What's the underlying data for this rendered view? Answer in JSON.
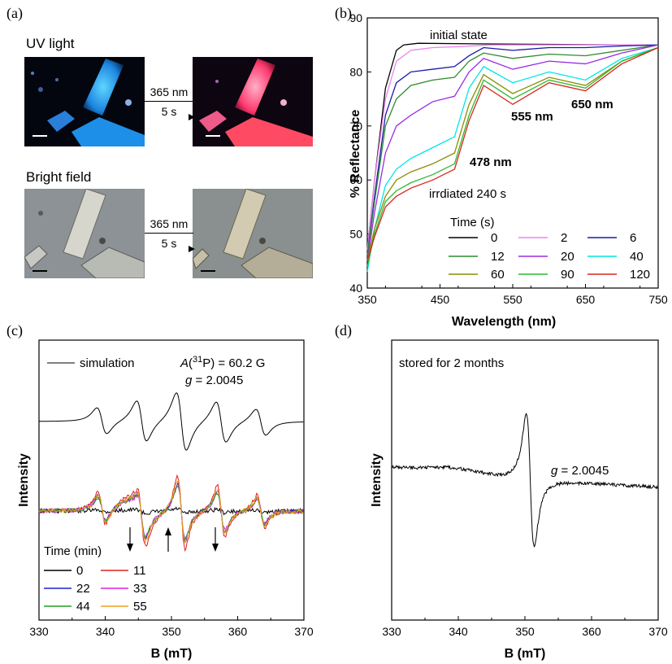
{
  "panel_labels": {
    "a": "(a)",
    "b": "(b)",
    "c": "(c)",
    "d": "(d)"
  },
  "panel_a": {
    "uv_title": "UV light",
    "bright_title": "Bright field",
    "arrow_top_line1": "365 nm",
    "arrow_top_line2": "5 s",
    "arrow_bottom_line1": "365 nm",
    "arrow_bottom_line2": "5 s"
  },
  "colors": {
    "t0": "#000000",
    "t2": "#ee82ee",
    "t6": "#1a1aaa",
    "t12": "#2e8b2e",
    "t20": "#9a2be2",
    "t40": "#00e5e5",
    "t60": "#8b8b00",
    "t90": "#2fb82f",
    "t120": "#d9261c",
    "c0": "#000000",
    "c11": "#e02020",
    "c22": "#2020d0",
    "c33": "#e020e0",
    "c44": "#20a020",
    "c55": "#f0a020"
  },
  "chart_data": [
    {
      "id": "reflectance",
      "type": "line",
      "xlabel": "Wavelength (nm)",
      "ylabel": "% Reflectance",
      "xlim": [
        350,
        750
      ],
      "ylim": [
        40,
        90
      ],
      "xticks": [
        "350",
        "450",
        "550",
        "650",
        "750"
      ],
      "yticks": [
        "40",
        "50",
        "60",
        "70",
        "80",
        "90"
      ],
      "legend_title": "Time (s)",
      "annotations": [
        "initial state",
        "irrdiated 240 s",
        "478 nm",
        "555 nm",
        "650 nm"
      ],
      "series": [
        {
          "name": "0",
          "x": [
            350,
            360,
            375,
            390,
            400,
            420,
            500,
            600,
            700,
            750
          ],
          "y": [
            47,
            60,
            77,
            84,
            85,
            85.3,
            85.2,
            85.1,
            85,
            85
          ]
        },
        {
          "name": "2",
          "x": [
            350,
            360,
            375,
            390,
            410,
            440,
            480,
            520,
            600,
            700,
            750
          ],
          "y": [
            47,
            60,
            75,
            82,
            84,
            84.5,
            84.7,
            85,
            85,
            85,
            85
          ]
        },
        {
          "name": "6",
          "x": [
            350,
            360,
            375,
            390,
            410,
            440,
            470,
            490,
            510,
            550,
            600,
            650,
            700,
            750
          ],
          "y": [
            46,
            57,
            72,
            78,
            80,
            80.5,
            81,
            83,
            84.5,
            84,
            84.5,
            84.5,
            84.8,
            85
          ]
        },
        {
          "name": "12",
          "x": [
            350,
            360,
            375,
            390,
            410,
            440,
            470,
            490,
            510,
            550,
            600,
            650,
            700,
            750
          ],
          "y": [
            46,
            56,
            70,
            75,
            77.5,
            78.5,
            79,
            82,
            83.5,
            82.5,
            83.3,
            83,
            84,
            85
          ]
        },
        {
          "name": "20",
          "x": [
            350,
            360,
            375,
            390,
            410,
            440,
            470,
            490,
            510,
            550,
            600,
            650,
            700,
            750
          ],
          "y": [
            45,
            54,
            65,
            70,
            72,
            74.5,
            75.5,
            80,
            82.5,
            80.5,
            82,
            81.5,
            83.5,
            85
          ]
        },
        {
          "name": "40",
          "x": [
            350,
            360,
            375,
            390,
            410,
            440,
            470,
            490,
            510,
            550,
            600,
            650,
            700,
            750
          ],
          "y": [
            43,
            51,
            59,
            62,
            64,
            66,
            68,
            77,
            81,
            78,
            80,
            78.5,
            82.5,
            84.5
          ]
        },
        {
          "name": "60",
          "x": [
            350,
            360,
            375,
            390,
            410,
            440,
            470,
            490,
            510,
            550,
            600,
            650,
            700,
            750
          ],
          "y": [
            45,
            51,
            57,
            60,
            61.5,
            63,
            65,
            74,
            79.5,
            76,
            79,
            77.5,
            82,
            84.5
          ]
        },
        {
          "name": "90",
          "x": [
            350,
            360,
            375,
            390,
            410,
            440,
            470,
            490,
            510,
            550,
            600,
            650,
            700,
            750
          ],
          "y": [
            44,
            50,
            56,
            58,
            59.5,
            61,
            63,
            72,
            78.5,
            75,
            78.5,
            77,
            82,
            84.5
          ]
        },
        {
          "name": "120",
          "x": [
            350,
            360,
            375,
            390,
            410,
            440,
            470,
            490,
            510,
            550,
            600,
            650,
            700,
            750
          ],
          "y": [
            45,
            49.5,
            55,
            57,
            58.5,
            60,
            62,
            71,
            77.5,
            74,
            78,
            76.5,
            81.5,
            84.5
          ]
        }
      ]
    },
    {
      "id": "epr-time",
      "type": "line",
      "xlabel": "B (mT)",
      "ylabel": "Intensity",
      "xlim": [
        330,
        370
      ],
      "xticks": [
        "330",
        "340",
        "350",
        "360",
        "370"
      ],
      "legend_title": "Time (min)",
      "annotations": [
        "simulation",
        "A(31P) = 60.2 G",
        "g = 2.0045"
      ],
      "simulation_lines_mT": [
        339.5,
        345.5,
        351.5,
        357.5,
        363.5
      ]
    },
    {
      "id": "epr-stored",
      "type": "line",
      "xlabel": "B (mT)",
      "ylabel": "Intensity",
      "xlim": [
        330,
        370
      ],
      "xticks": [
        "330",
        "340",
        "350",
        "360",
        "370"
      ],
      "annotations": [
        "stored for 2 months",
        "g = 2.0045"
      ],
      "center_mT": 350.8
    }
  ],
  "text": {
    "b_initial": "initial state",
    "b_irradiated": "irrdiated 240 s",
    "b_478": "478 nm",
    "b_555": "555 nm",
    "b_650": "650 nm",
    "b_legend_title": "Time (s)",
    "b_xlabel": "Wavelength (nm)",
    "b_ylabel": "% Reflectance",
    "c_sim": "simulation",
    "c_A_prefix": "A",
    "c_A_sup": "31",
    "c_A_suffix": "P) = 60.2 G",
    "c_g_prefix": "g",
    "c_g_value": " = 2.0045",
    "c_legend_title": "Time (min)",
    "c_xlabel": "B (mT)",
    "c_ylabel": "Intensity",
    "d_stored": "stored for 2 months",
    "d_g_prefix": "g",
    "d_g_value": " = 2.0045",
    "d_xlabel": "B (mT)",
    "d_ylabel": "Intensity"
  },
  "legend_b": [
    {
      "label": "0",
      "color_key": "t0"
    },
    {
      "label": "2",
      "color_key": "t2"
    },
    {
      "label": "6",
      "color_key": "t6"
    },
    {
      "label": "12",
      "color_key": "t12"
    },
    {
      "label": "20",
      "color_key": "t20"
    },
    {
      "label": "40",
      "color_key": "t40"
    },
    {
      "label": "60",
      "color_key": "t60"
    },
    {
      "label": "90",
      "color_key": "t90"
    },
    {
      "label": "120",
      "color_key": "t120"
    }
  ],
  "legend_c": [
    {
      "label": "0",
      "color_key": "c0"
    },
    {
      "label": "11",
      "color_key": "c11"
    },
    {
      "label": "22",
      "color_key": "c22"
    },
    {
      "label": "33",
      "color_key": "c33"
    },
    {
      "label": "44",
      "color_key": "c44"
    },
    {
      "label": "55",
      "color_key": "c55"
    }
  ]
}
